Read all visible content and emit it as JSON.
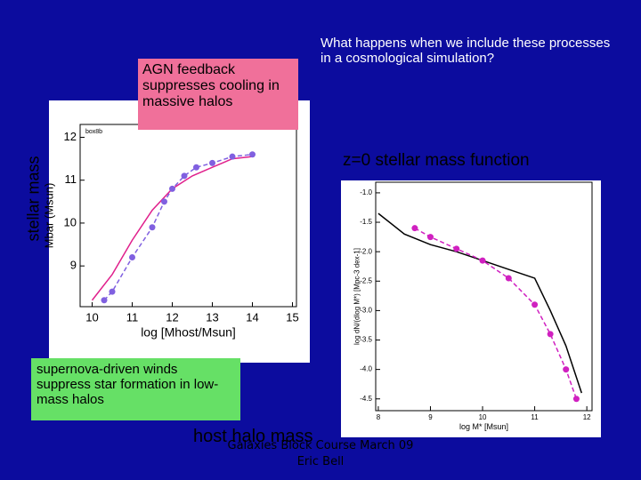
{
  "slide": {
    "question": "What happens when we include these processes in a cosmological simulation?",
    "agn_note": "AGN feedback suppresses cooling in massive halos",
    "y_caption": "stellar mass",
    "smf_caption": "z=0 stellar mass function",
    "sn_note": "supernova-driven winds suppress star formation in low-mass halos",
    "x_caption": "host halo mass",
    "footer": "Galaxies Block Course March 09",
    "author": "Eric Bell"
  },
  "chart_data": [
    {
      "type": "line",
      "annotation": "box8b",
      "x_label": "log [Mhost/Msun]",
      "y_label": "Mbar (Msun)",
      "xlim": [
        9.7,
        15.1
      ],
      "ylim": [
        8.05,
        12.3
      ],
      "xticks": [
        10,
        11,
        12,
        13,
        14,
        15
      ],
      "yticks": [
        9,
        10,
        11,
        12
      ],
      "series": [
        {
          "color": "#e0208c",
          "markers": false,
          "x": [
            10,
            10.5,
            11,
            11.5,
            12,
            12.5,
            13,
            13.5,
            14
          ],
          "values": [
            8.2,
            8.8,
            9.6,
            10.3,
            10.8,
            11.1,
            11.3,
            11.5,
            11.55
          ]
        },
        {
          "color": "#8060e0",
          "markers": true,
          "x": [
            10.3,
            10.5,
            11,
            11.5,
            11.8,
            12,
            12.3,
            12.6,
            13,
            13.5,
            14
          ],
          "values": [
            8.2,
            8.4,
            9.2,
            9.9,
            10.5,
            10.8,
            11.1,
            11.3,
            11.4,
            11.55,
            11.6
          ]
        }
      ]
    },
    {
      "type": "line",
      "x_label": "log M* [Msun]",
      "y_label": "log dN/(dlog M*) [Mpc-3 dex-1]",
      "xlim": [
        7.95,
        12.1
      ],
      "ylim": [
        -4.7,
        -0.82
      ],
      "xticks": [
        8,
        9,
        10,
        11,
        12
      ],
      "yticks": [
        {
          "value": -1,
          "label": "-1.0"
        },
        -1.5,
        {
          "value": -2,
          "label": "-2.0"
        },
        -2.5,
        {
          "value": -3,
          "label": "-3.0"
        },
        -3.5,
        {
          "value": -4,
          "label": "-4.0"
        },
        -4.5
      ],
      "series": [
        {
          "color": "#000000",
          "markers": false,
          "x": [
            8,
            8.5,
            9,
            9.5,
            10,
            10.5,
            11,
            11.3,
            11.6,
            11.9
          ],
          "values": [
            -1.35,
            -1.7,
            -1.88,
            -2.0,
            -2.15,
            -2.3,
            -2.45,
            -3.0,
            -3.6,
            -4.4
          ]
        },
        {
          "color": "#d020c0",
          "markers": true,
          "x": [
            8.7,
            9,
            9.5,
            10,
            10.5,
            11,
            11.3,
            11.6,
            11.8
          ],
          "values": [
            -1.6,
            -1.75,
            -1.95,
            -2.15,
            -2.45,
            -2.9,
            -3.4,
            -4.0,
            -4.5
          ]
        }
      ]
    }
  ]
}
